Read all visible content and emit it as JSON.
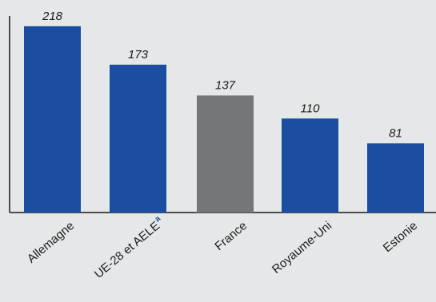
{
  "chart_data": {
    "type": "bar",
    "categories": [
      "Allemagne",
      "UE-28 et AELE",
      "France",
      "Royaume-Uni",
      "Estonie"
    ],
    "category_superscripts": [
      "",
      "a",
      "",
      "",
      ""
    ],
    "values": [
      218,
      173,
      137,
      110,
      81
    ],
    "bar_colors": [
      "#1b4ea1",
      "#1b4ea1",
      "#747677",
      "#1b4ea1",
      "#1b4ea1"
    ],
    "ylim": [
      0,
      230
    ],
    "grid": false,
    "legend": "none"
  }
}
